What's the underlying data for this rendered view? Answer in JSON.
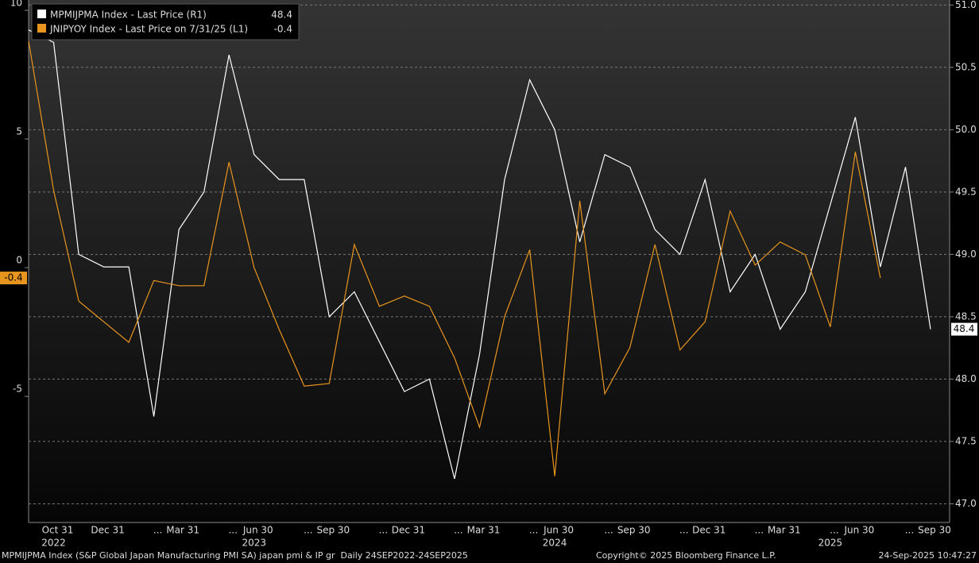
{
  "chart_data": {
    "type": "line",
    "categories": [
      null,
      "Oct 31",
      null,
      "Dec 31",
      null,
      "...",
      "Mar 31",
      null,
      "...",
      "Jun 30",
      null,
      "...",
      "Sep 30",
      null,
      "...",
      "Dec 31",
      null,
      "...",
      "Mar 31",
      null,
      "...",
      "Jun 30",
      null,
      "...",
      "Sep 30",
      null,
      "...",
      "Dec 31",
      null,
      "...",
      "Mar 31",
      null,
      "...",
      "Jun 30",
      null,
      "...",
      "Sep 30"
    ],
    "year_labels": [
      null,
      "2022",
      null,
      null,
      null,
      null,
      null,
      null,
      null,
      "2023",
      null,
      null,
      null,
      null,
      null,
      null,
      null,
      null,
      null,
      null,
      null,
      "2024",
      null,
      null,
      null,
      null,
      null,
      null,
      null,
      null,
      null,
      null,
      "2025",
      null,
      null,
      null,
      null
    ],
    "series": [
      {
        "name": "MPMIJPMA Index - Last Price (R1)",
        "color": "#ffffff",
        "axis": "y2",
        "values": [
          50.8,
          50.7,
          49.0,
          48.9,
          48.9,
          47.7,
          49.2,
          49.5,
          50.6,
          49.8,
          49.6,
          49.6,
          48.5,
          48.7,
          48.3,
          47.9,
          48.0,
          47.2,
          48.2,
          49.6,
          50.4,
          50.0,
          49.1,
          49.8,
          49.7,
          49.2,
          49.0,
          49.6,
          48.7,
          49.0,
          48.4,
          48.7,
          49.4,
          50.1,
          48.9,
          49.7,
          48.4
        ]
      },
      {
        "name": "JNIPYOY Index - Last Price on 7/31/25 (L1)",
        "color": "#e8951f",
        "axis": "y",
        "values": [
          8.8,
          3.0,
          -1.3,
          -2.1,
          -2.9,
          -0.5,
          -0.7,
          -0.7,
          4.1,
          0.0,
          -2.4,
          -4.6,
          -4.5,
          0.9,
          -1.5,
          -1.1,
          -1.5,
          -3.5,
          -6.2,
          -1.9,
          0.7,
          -8.1,
          2.6,
          -4.9,
          -3.1,
          0.9,
          -3.2,
          -2.1,
          2.2,
          0.1,
          1.0,
          0.5,
          -2.3,
          4.5,
          -0.4,
          null,
          null
        ]
      }
    ],
    "ylim": [
      -9.9,
      10.4
    ],
    "yticks": [
      10,
      5,
      0,
      -5
    ],
    "y2lim": [
      46.85,
      51.04
    ],
    "y2ticks": [
      {
        "value": 51.0,
        "label": "51.0"
      },
      {
        "value": 50.5,
        "label": "50.5"
      },
      {
        "value": 50.0,
        "label": "50.0"
      },
      {
        "value": 49.5,
        "label": "49.5"
      },
      {
        "value": 49.0,
        "label": "49.0"
      },
      {
        "value": 48.5,
        "label": "48.5"
      },
      {
        "value": 48.0,
        "label": "48.0"
      },
      {
        "value": 47.5,
        "label": "47.5"
      },
      {
        "value": 47.0,
        "label": "47.0"
      }
    ],
    "grid": true,
    "footer": {
      "description": "MPMIJPMA Index (S&P Global Japan Manufacturing PMI SA) japan pmi & IP gr  Daily 24SEP2022-24SEP2025",
      "copyright": "Copyright© 2025 Bloomberg Finance L.P.",
      "timestamp": "24-Sep-2025 10:47:27"
    }
  }
}
